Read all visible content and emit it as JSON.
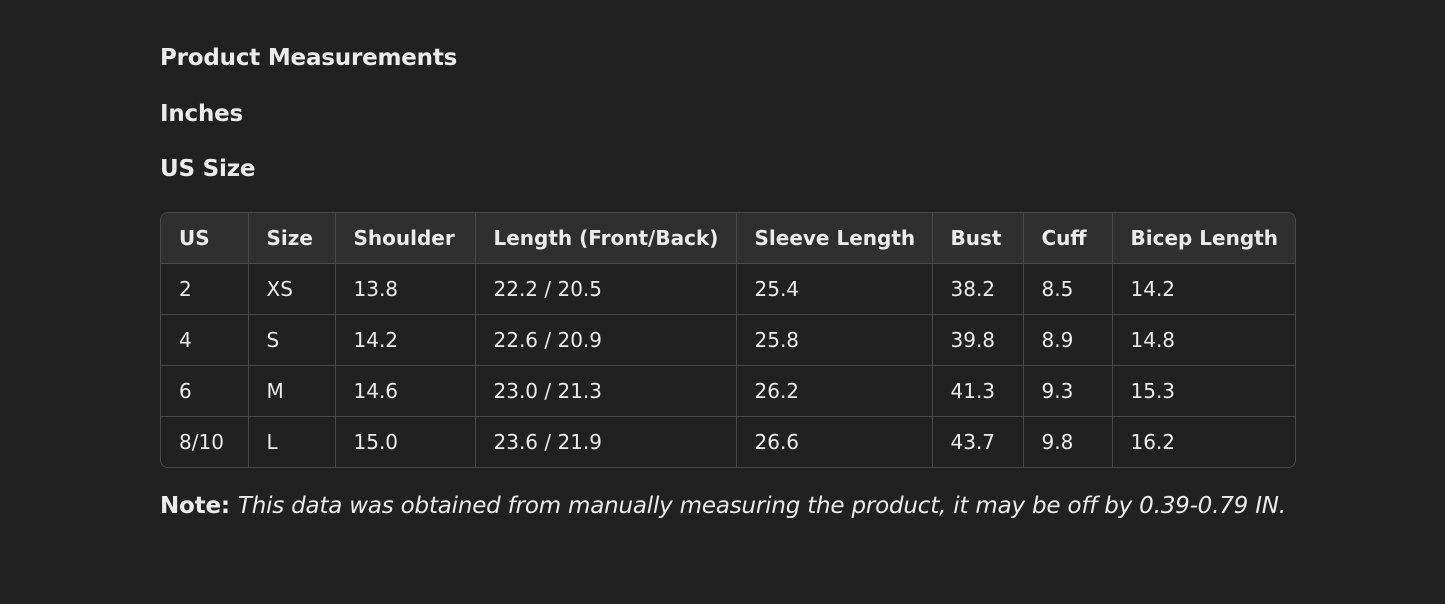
{
  "headings": [
    "Product Measurements",
    "Inches",
    "US Size"
  ],
  "table": {
    "header": [
      "US",
      "Size",
      "Shoulder",
      "Length (Front/Back)",
      "Sleeve Length",
      "Bust",
      "Cuff",
      "Bicep Length"
    ],
    "rows": [
      [
        "2",
        "XS",
        "13.8",
        "22.2 / 20.5",
        "25.4",
        "38.2",
        "8.5",
        "14.2"
      ],
      [
        "4",
        "S",
        "14.2",
        "22.6 / 20.9",
        "25.8",
        "39.8",
        "8.9",
        "14.8"
      ],
      [
        "6",
        "M",
        "14.6",
        "23.0 / 21.3",
        "26.2",
        "41.3",
        "9.3",
        "15.3"
      ],
      [
        "8/10",
        "L",
        "15.0",
        "23.6 / 21.9",
        "26.6",
        "43.7",
        "9.8",
        "16.2"
      ]
    ]
  },
  "note": {
    "label": "Note:",
    "text": "This data was obtained from manually measuring the product, it may be off by 0.39-0.79 IN."
  }
}
